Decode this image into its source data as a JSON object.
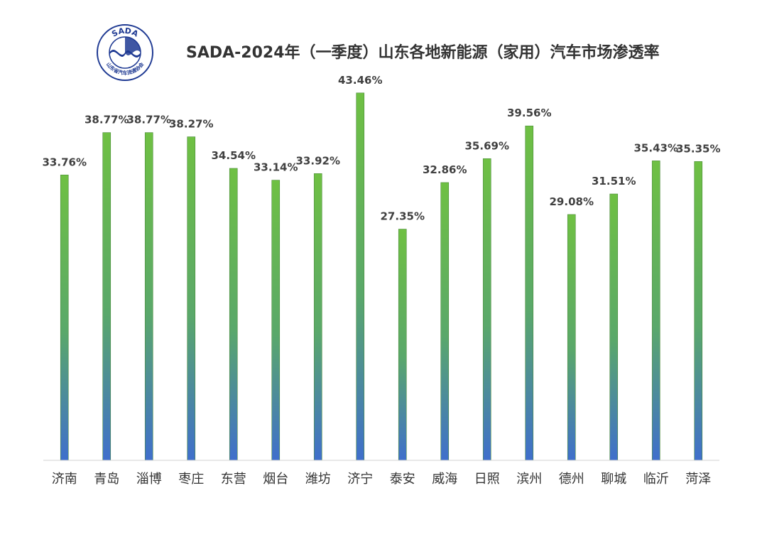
{
  "logo": {
    "text": "SADA",
    "org_name": "山东省汽车流通协会",
    "ring_color": "#1f3a93"
  },
  "colors": {
    "bar_top": "#6fc043",
    "bar_bottom": "#3f6fcc",
    "bar_stroke": "#4a8a3a",
    "axis": "#d0d0d0"
  },
  "chart_data": {
    "type": "bar",
    "title": "SADA-2024年（一季度）山东各地新能源（家用）汽车市场渗透率",
    "xlabel": "",
    "ylabel": "",
    "ylim": [
      0,
      45
    ],
    "grid": false,
    "legend": "none",
    "categories": [
      "济南",
      "青岛",
      "淄博",
      "枣庄",
      "东营",
      "烟台",
      "潍坊",
      "济宁",
      "泰安",
      "威海",
      "日照",
      "滨州",
      "德州",
      "聊城",
      "临沂",
      "菏泽"
    ],
    "values": [
      33.76,
      38.77,
      38.77,
      38.27,
      34.54,
      33.14,
      33.92,
      43.46,
      27.35,
      32.86,
      35.69,
      39.56,
      29.08,
      31.51,
      35.43,
      35.35
    ],
    "data_labels": [
      "33.76%",
      "38.77%",
      "38.77%",
      "38.27%",
      "34.54%",
      "33.14%",
      "33.92%",
      "43.46%",
      "27.35%",
      "32.86%",
      "35.69%",
      "39.56%",
      "29.08%",
      "31.51%",
      "35.43%",
      "35.35%"
    ]
  }
}
